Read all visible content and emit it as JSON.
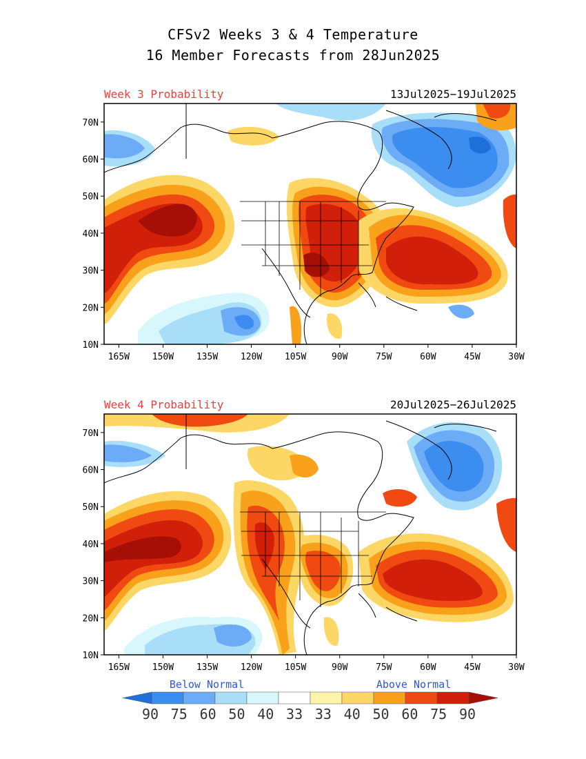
{
  "title": {
    "line1": "CFSv2 Weeks 3 & 4 Temperature",
    "line2": "16 Member Forecasts from 28Jun2025"
  },
  "panels": [
    {
      "label": "Week 3 Probability",
      "dates": "13Jul2025−19Jul2025"
    },
    {
      "label": "Week 4 Probability",
      "dates": "20Jul2025−26Jul2025"
    }
  ],
  "axes": {
    "lat_ticks": [
      "70N",
      "60N",
      "50N",
      "40N",
      "30N",
      "20N",
      "10N"
    ],
    "lon_ticks": [
      "165W",
      "150W",
      "135W",
      "120W",
      "105W",
      "90W",
      "75W",
      "60W",
      "45W",
      "30W"
    ],
    "lon_range": [
      -170,
      -30
    ],
    "lat_range": [
      10,
      75
    ]
  },
  "legend": {
    "below_label": "Below Normal",
    "above_label": "Above Normal",
    "values": [
      "90",
      "75",
      "60",
      "50",
      "40",
      "33",
      "33",
      "40",
      "50",
      "60",
      "75",
      "90"
    ],
    "colors": [
      "#1e6fd9",
      "#3b8ef0",
      "#6cacf7",
      "#a9def8",
      "#d8f7fc",
      "#ffffff",
      "#fff4a8",
      "#fcd765",
      "#f9a11b",
      "#f04a12",
      "#d11f0a",
      "#a50f05"
    ]
  },
  "colors": {
    "panel_label": "#e8403c",
    "legend_below": "#2f57d6",
    "legend_above": "#2f57d6"
  }
}
